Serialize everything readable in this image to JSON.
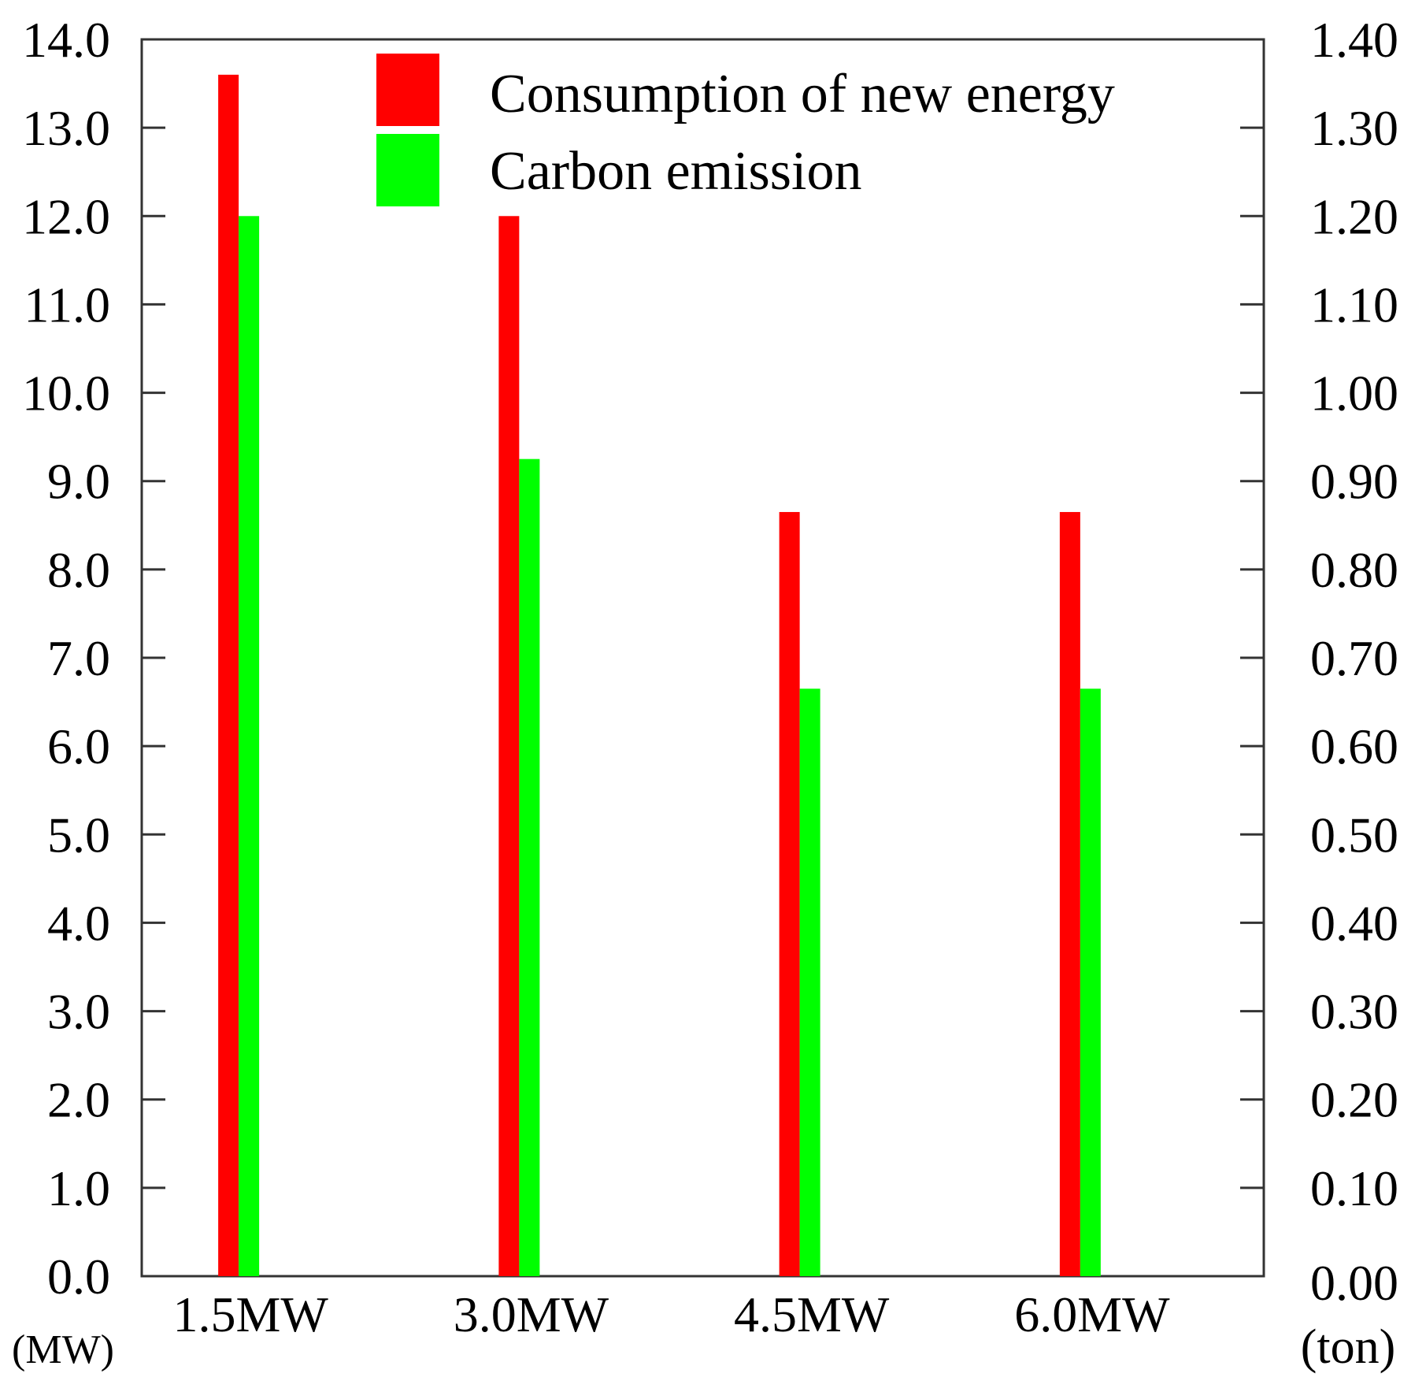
{
  "chart_data": {
    "type": "bar",
    "categories": [
      "1.5MW",
      "3.0MW",
      "4.5MW",
      "6.0MW"
    ],
    "series": [
      {
        "name": "Consumption of new energy",
        "axis": "left",
        "color": "#ff0000",
        "values": [
          13.6,
          12.0,
          8.65,
          8.65
        ]
      },
      {
        "name": "Carbon emission",
        "axis": "right",
        "color": "#00ff00",
        "values": [
          1.2,
          0.925,
          0.665,
          0.665
        ]
      }
    ],
    "left_axis": {
      "unit": "(MW)",
      "ylim": [
        0,
        14
      ],
      "ticks": [
        "0.0",
        "1.0",
        "2.0",
        "3.0",
        "4.0",
        "5.0",
        "6.0",
        "7.0",
        "8.0",
        "9.0",
        "10.0",
        "11.0",
        "12.0",
        "13.0",
        "14.0"
      ]
    },
    "right_axis": {
      "unit": "(ton)",
      "ylim": [
        0,
        1.4
      ],
      "ticks": [
        "0.00",
        "0.10",
        "0.20",
        "0.30",
        "0.40",
        "0.50",
        "0.60",
        "0.70",
        "0.80",
        "0.90",
        "1.00",
        "1.10",
        "1.20",
        "1.30",
        "1.40"
      ]
    },
    "legend_position": "top-center",
    "grid": false
  }
}
